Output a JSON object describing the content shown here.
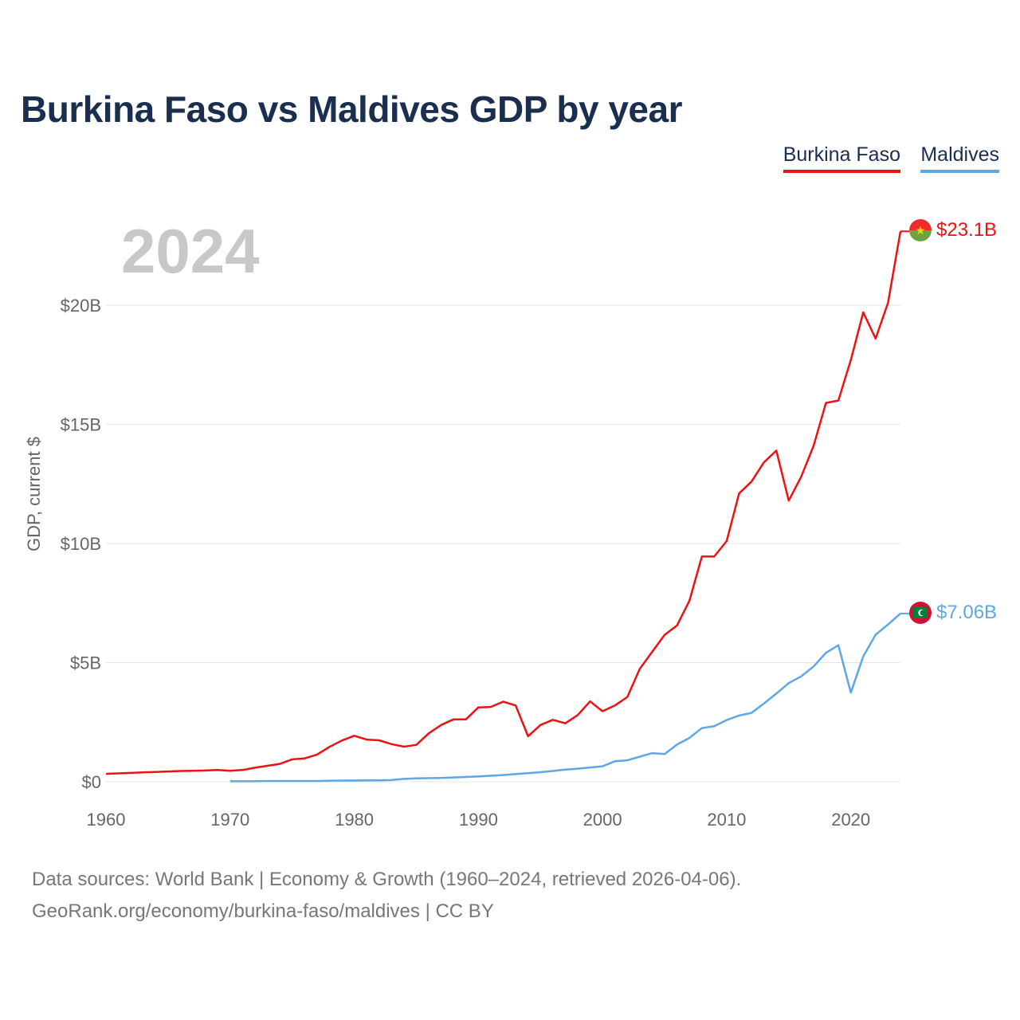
{
  "title": "Burkina Faso vs Maldives GDP by year",
  "legend": [
    {
      "name": "Burkina Faso",
      "color": "#ee1111"
    },
    {
      "name": "Maldives",
      "color": "#5fa6e4"
    }
  ],
  "year_label": "2024",
  "source": {
    "line1": "Data sources: World Bank | Economy & Growth (1960–2024, retrieved 2026-04-06).",
    "line2": "GeoRank.org/economy/burkina-faso/maldives | CC BY"
  },
  "chart_data": {
    "type": "line",
    "title": "Burkina Faso vs Maldives GDP by year",
    "xlabel": "",
    "ylabel": "GDP, current $",
    "xlim": [
      1960,
      2024
    ],
    "ylim": [
      0,
      25
    ],
    "y_unit": "billion USD",
    "x_ticks": [
      1960,
      1970,
      1980,
      1990,
      2000,
      2010,
      2020
    ],
    "y_ticks": [
      {
        "value": 0,
        "label": "$0"
      },
      {
        "value": 5,
        "label": "$5B"
      },
      {
        "value": 10,
        "label": "$10B"
      },
      {
        "value": 15,
        "label": "$15B"
      },
      {
        "value": 20,
        "label": "$20B"
      }
    ],
    "grid": true,
    "legend_position": "top-right",
    "series": [
      {
        "name": "Burkina Faso",
        "color": "#ee1111",
        "flag_icon": "burkina-faso-flag-icon",
        "end_label": "$23.1B",
        "x": [
          1960,
          1961,
          1962,
          1963,
          1964,
          1965,
          1966,
          1967,
          1968,
          1969,
          1970,
          1971,
          1972,
          1973,
          1974,
          1975,
          1976,
          1977,
          1978,
          1979,
          1980,
          1981,
          1982,
          1983,
          1984,
          1985,
          1986,
          1987,
          1988,
          1989,
          1990,
          1991,
          1992,
          1993,
          1994,
          1995,
          1996,
          1997,
          1998,
          1999,
          2000,
          2001,
          2002,
          2003,
          2004,
          2005,
          2006,
          2007,
          2008,
          2009,
          2010,
          2011,
          2012,
          2013,
          2014,
          2015,
          2016,
          2017,
          2018,
          2019,
          2020,
          2021,
          2022,
          2023,
          2024
        ],
        "values": [
          0.33,
          0.35,
          0.37,
          0.39,
          0.41,
          0.43,
          0.45,
          0.46,
          0.47,
          0.49,
          0.46,
          0.49,
          0.59,
          0.67,
          0.75,
          0.94,
          0.98,
          1.14,
          1.46,
          1.73,
          1.93,
          1.77,
          1.74,
          1.58,
          1.47,
          1.55,
          2.03,
          2.38,
          2.62,
          2.62,
          3.12,
          3.14,
          3.36,
          3.2,
          1.91,
          2.38,
          2.6,
          2.45,
          2.8,
          3.37,
          2.96,
          3.2,
          3.56,
          4.74,
          5.45,
          6.16,
          6.56,
          7.6,
          9.45,
          9.45,
          10.1,
          12.1,
          12.6,
          13.4,
          13.9,
          11.8,
          12.8,
          14.1,
          15.9,
          16.0,
          17.7,
          19.7,
          18.6,
          20.1,
          23.1
        ]
      },
      {
        "name": "Maldives",
        "color": "#5fa6e4",
        "flag_icon": "maldives-flag-icon",
        "end_label": "$7.06B",
        "x": [
          1970,
          1971,
          1972,
          1973,
          1974,
          1975,
          1976,
          1977,
          1978,
          1979,
          1980,
          1981,
          1982,
          1983,
          1984,
          1985,
          1986,
          1987,
          1988,
          1989,
          1990,
          1991,
          1992,
          1993,
          1994,
          1995,
          1996,
          1997,
          1998,
          1999,
          2000,
          2001,
          2002,
          2003,
          2004,
          2005,
          2006,
          2007,
          2008,
          2009,
          2010,
          2011,
          2012,
          2013,
          2014,
          2015,
          2016,
          2017,
          2018,
          2019,
          2020,
          2021,
          2022,
          2023,
          2024
        ],
        "values": [
          0.02,
          0.02,
          0.02,
          0.03,
          0.03,
          0.03,
          0.03,
          0.03,
          0.04,
          0.05,
          0.05,
          0.06,
          0.06,
          0.07,
          0.12,
          0.14,
          0.15,
          0.16,
          0.18,
          0.2,
          0.22,
          0.25,
          0.28,
          0.32,
          0.36,
          0.4,
          0.45,
          0.51,
          0.55,
          0.6,
          0.65,
          0.86,
          0.9,
          1.05,
          1.2,
          1.16,
          1.56,
          1.84,
          2.25,
          2.33,
          2.59,
          2.78,
          2.89,
          3.28,
          3.7,
          4.14,
          4.42,
          4.84,
          5.41,
          5.73,
          3.74,
          5.26,
          6.17,
          6.6,
          7.06
        ]
      }
    ]
  }
}
